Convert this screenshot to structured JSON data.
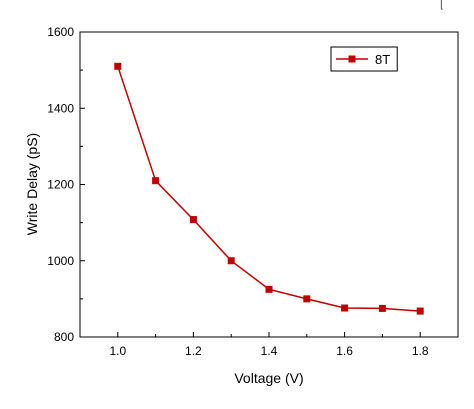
{
  "top_text_fragment": "[",
  "colors": {
    "series": "#c00000",
    "axis": "#000000",
    "background": "#ffffff"
  },
  "chart_data": {
    "type": "line",
    "title": "",
    "xlabel": "Voltage (V)",
    "ylabel": "Write Delay (pS)",
    "xlim": [
      0.9,
      1.9
    ],
    "ylim": [
      800,
      1600
    ],
    "x_ticks": [
      1.0,
      1.2,
      1.4,
      1.6,
      1.8
    ],
    "x_tick_labels": [
      "1.0",
      "1.2",
      "1.4",
      "1.6",
      "1.8"
    ],
    "y_ticks": [
      800,
      1000,
      1200,
      1400,
      1600
    ],
    "y_tick_labels": [
      "800",
      "1000",
      "1200",
      "1400",
      "1600"
    ],
    "grid": false,
    "legend_position": "top-right",
    "series": [
      {
        "name": "8T",
        "marker": "square",
        "x": [
          1.0,
          1.1,
          1.2,
          1.3,
          1.4,
          1.5,
          1.6,
          1.7,
          1.8
        ],
        "y": [
          1510,
          1210,
          1108,
          1000,
          925,
          900,
          876,
          875,
          868
        ]
      }
    ]
  }
}
